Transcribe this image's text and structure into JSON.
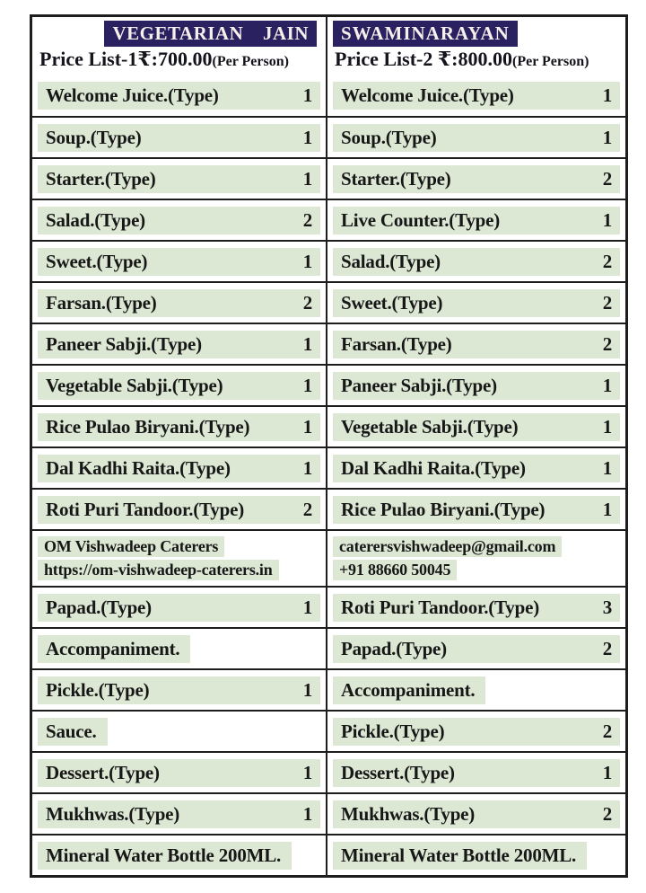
{
  "page": {
    "background": "#ffffff",
    "accent_navy": "#2a2161",
    "highlight_green": "#dce8d4",
    "text_color": "#171717",
    "border_color": "#1d1d1d"
  },
  "header": {
    "left": {
      "badge": "VEGETARIAN JAIN",
      "price_main": "Price List-1₹:700.00",
      "price_suffix": "(Per Person)"
    },
    "right": {
      "badge": "SWAMINARAYAN",
      "price_main": "Price List-2 ₹:800.00",
      "price_suffix": "(Per Person)"
    }
  },
  "table": {
    "rows": [
      {
        "kind": "item",
        "left": {
          "label": "Welcome Juice.(Type)",
          "count": "1"
        },
        "right": {
          "label": "Welcome Juice.(Type)",
          "count": "1"
        }
      },
      {
        "kind": "item",
        "left": {
          "label": "Soup.(Type)",
          "count": "1"
        },
        "right": {
          "label": "Soup.(Type)",
          "count": "1"
        }
      },
      {
        "kind": "item",
        "left": {
          "label": "Starter.(Type)",
          "count": "1"
        },
        "right": {
          "label": "Starter.(Type)",
          "count": "2"
        }
      },
      {
        "kind": "item",
        "left": {
          "label": "Salad.(Type)",
          "count": "2"
        },
        "right": {
          "label": "Live Counter.(Type)",
          "count": "1"
        }
      },
      {
        "kind": "item",
        "left": {
          "label": "Sweet.(Type)",
          "count": "1"
        },
        "right": {
          "label": "Salad.(Type)",
          "count": "2"
        }
      },
      {
        "kind": "item",
        "left": {
          "label": "Farsan.(Type)",
          "count": "2"
        },
        "right": {
          "label": "Sweet.(Type)",
          "count": "2"
        }
      },
      {
        "kind": "item",
        "left": {
          "label": "Paneer Sabji.(Type)",
          "count": "1"
        },
        "right": {
          "label": "Farsan.(Type)",
          "count": "2"
        }
      },
      {
        "kind": "item",
        "left": {
          "label": "Vegetable Sabji.(Type)",
          "count": "1"
        },
        "right": {
          "label": "Paneer Sabji.(Type)",
          "count": "1"
        }
      },
      {
        "kind": "item",
        "left": {
          "label": "Rice Pulao Biryani.(Type)",
          "count": "1"
        },
        "right": {
          "label": "Vegetable Sabji.(Type)",
          "count": "1"
        }
      },
      {
        "kind": "item",
        "left": {
          "label": "Dal Kadhi Raita.(Type)",
          "count": "1"
        },
        "right": {
          "label": "Dal Kadhi Raita.(Type)",
          "count": "1"
        }
      },
      {
        "kind": "item",
        "left": {
          "label": "Roti Puri Tandoor.(Type)",
          "count": "2"
        },
        "right": {
          "label": "Rice Pulao Biryani.(Type)",
          "count": "1"
        }
      },
      {
        "kind": "info",
        "left": {
          "lines": [
            "OM Vishwadeep Caterers",
            "https://om-vishwadeep-caterers.in"
          ],
          "names": [
            "caterer-name",
            "caterer-website"
          ]
        },
        "right": {
          "lines": [
            "caterersvishwadeep@gmail.com",
            "+91 88660 50045"
          ],
          "names": [
            "caterer-email",
            "caterer-phone"
          ]
        }
      },
      {
        "kind": "item",
        "left": {
          "label": "Papad.(Type)",
          "count": "1"
        },
        "right": {
          "label": "Roti Puri Tandoor.(Type)",
          "count": "3"
        }
      },
      {
        "kind": "item",
        "left": {
          "label": "Accompaniment.",
          "count": ""
        },
        "right": {
          "label": "Papad.(Type)",
          "count": "2"
        }
      },
      {
        "kind": "item",
        "left": {
          "label": "Pickle.(Type)",
          "count": "1"
        },
        "right": {
          "label": "Accompaniment.",
          "count": ""
        }
      },
      {
        "kind": "item",
        "left": {
          "label": "Sauce.",
          "count": ""
        },
        "right": {
          "label": "Pickle.(Type)",
          "count": "2"
        }
      },
      {
        "kind": "item",
        "left": {
          "label": "Dessert.(Type)",
          "count": "1"
        },
        "right": {
          "label": "Dessert.(Type)",
          "count": "1"
        }
      },
      {
        "kind": "item",
        "left": {
          "label": "Mukhwas.(Type)",
          "count": "1"
        },
        "right": {
          "label": "Mukhwas.(Type)",
          "count": "2"
        }
      },
      {
        "kind": "item",
        "left": {
          "label": "Mineral Water Bottle 200ML.",
          "count": ""
        },
        "right": {
          "label": "Mineral Water Bottle 200ML.",
          "count": ""
        }
      }
    ]
  }
}
